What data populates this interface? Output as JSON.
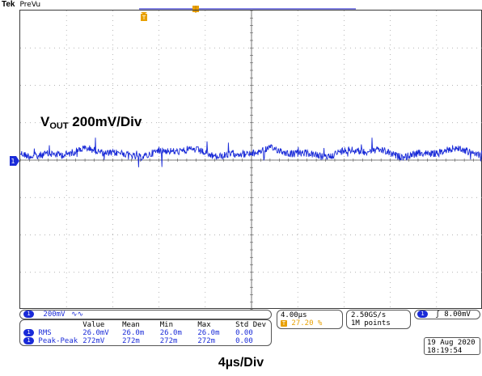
{
  "header": {
    "brand": "Tek",
    "mode": "PreVu"
  },
  "waveform": {
    "label_main": "V",
    "label_sub": "OUT",
    "label_scale": " 200mV/Div",
    "color": "#1a2bd8"
  },
  "trigger_marker": {
    "glyph": "T",
    "color": "#e8a000"
  },
  "channel": {
    "number": "1",
    "scale": "200mV",
    "coupling_icon": "bandwidth-limit-icon"
  },
  "timebase": {
    "value": "4.00µs",
    "trigger_position": "27.20 %"
  },
  "sample": {
    "rate": "2.50GS/s",
    "record": "1M points"
  },
  "trigger": {
    "source": "1",
    "slope_glyph": "ʃ",
    "level": "8.00mV"
  },
  "measurements": {
    "headers": [
      "",
      "Value",
      "Mean",
      "Min",
      "Max",
      "Std Dev"
    ],
    "rows": [
      {
        "channel": "1",
        "name": "RMS",
        "value": "26.0mV",
        "mean": "26.0m",
        "min": "26.0m",
        "max": "26.0m",
        "std": "0.00"
      },
      {
        "channel": "1",
        "name": "Peak-Peak",
        "value": "272mV",
        "mean": "272m",
        "min": "272m",
        "max": "272m",
        "std": "0.00"
      }
    ]
  },
  "datetime": {
    "date": "19 Aug 2020",
    "time": "18:19:54"
  },
  "footer": {
    "timebase_label": "4µs/Div"
  }
}
